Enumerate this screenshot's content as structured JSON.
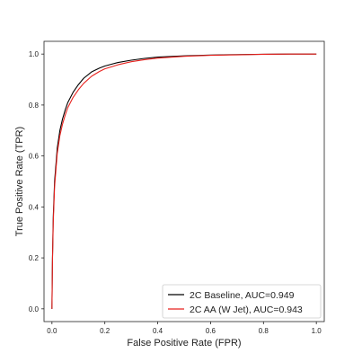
{
  "chart_data": {
    "type": "line",
    "title": "",
    "xlabel": "False Positive Rate (FPR)",
    "ylabel": "True Positive Rate (TPR)",
    "xlim": [
      -0.03,
      1.03
    ],
    "ylim": [
      -0.05,
      1.05
    ],
    "xticks": [
      0.0,
      0.2,
      0.4,
      0.6,
      0.8,
      1.0
    ],
    "yticks": [
      0.0,
      0.2,
      0.4,
      0.6,
      0.8,
      1.0
    ],
    "xtick_labels": [
      "0.0",
      "0.2",
      "0.4",
      "0.6",
      "0.8",
      "1.0"
    ],
    "ytick_labels": [
      "0.0",
      "0.2",
      "0.4",
      "0.6",
      "0.8",
      "1.0"
    ],
    "grid": false,
    "legend_position": "bottom-right",
    "series": [
      {
        "name": "2C Baseline, AUC=0.949",
        "color": "#000000",
        "x": [
          0.0,
          0.002,
          0.005,
          0.01,
          0.02,
          0.03,
          0.04,
          0.05,
          0.06,
          0.08,
          0.1,
          0.12,
          0.15,
          0.18,
          0.2,
          0.25,
          0.3,
          0.35,
          0.4,
          0.5,
          0.6,
          0.7,
          0.8,
          0.9,
          1.0
        ],
        "y": [
          0.0,
          0.2,
          0.36,
          0.5,
          0.63,
          0.7,
          0.745,
          0.78,
          0.81,
          0.85,
          0.88,
          0.905,
          0.93,
          0.945,
          0.953,
          0.967,
          0.976,
          0.983,
          0.988,
          0.993,
          0.996,
          0.998,
          0.999,
          1.0,
          1.0
        ]
      },
      {
        "name": "2C AA (W Jet), AUC=0.943",
        "color": "#e8221e",
        "x": [
          0.0,
          0.002,
          0.005,
          0.01,
          0.02,
          0.03,
          0.04,
          0.05,
          0.06,
          0.08,
          0.1,
          0.12,
          0.15,
          0.18,
          0.2,
          0.25,
          0.3,
          0.35,
          0.4,
          0.5,
          0.6,
          0.7,
          0.8,
          0.9,
          1.0
        ],
        "y": [
          0.0,
          0.19,
          0.34,
          0.48,
          0.61,
          0.68,
          0.725,
          0.76,
          0.79,
          0.83,
          0.86,
          0.885,
          0.913,
          0.932,
          0.942,
          0.958,
          0.97,
          0.978,
          0.984,
          0.991,
          0.995,
          0.997,
          0.999,
          1.0,
          1.0
        ]
      }
    ]
  }
}
